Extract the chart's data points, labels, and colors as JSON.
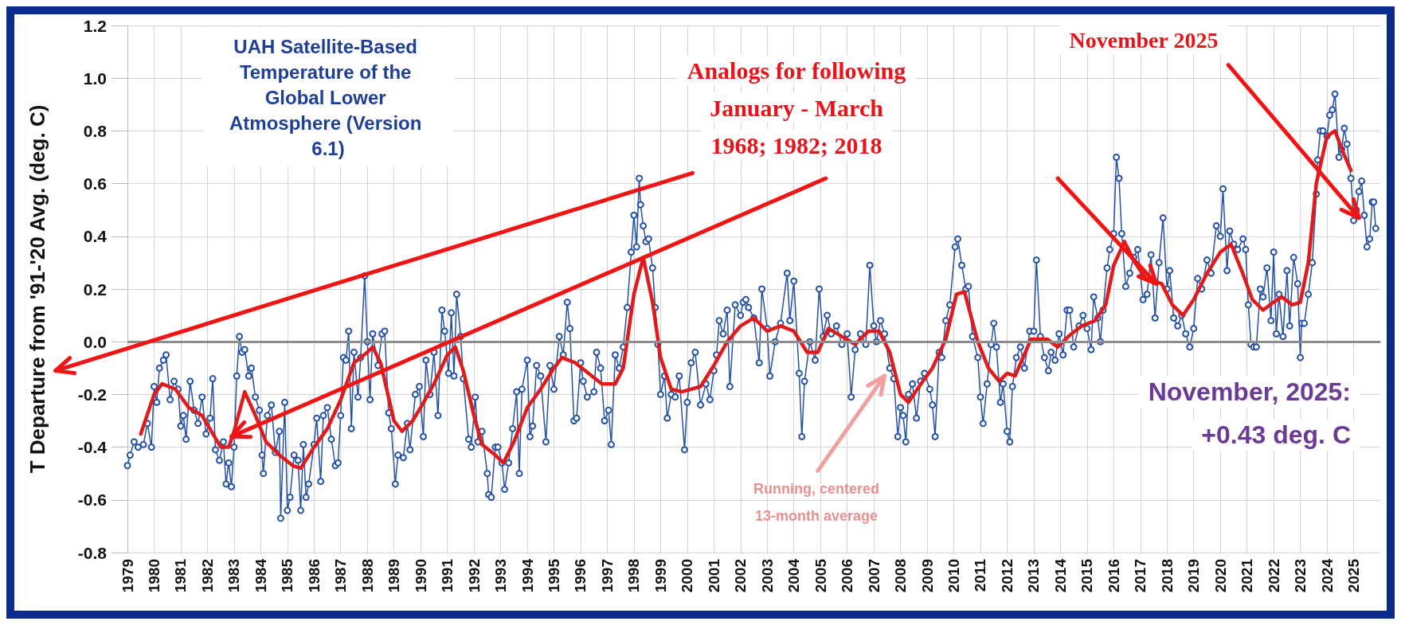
{
  "chart_data": {
    "type": "line",
    "title": "UAH Satellite-Based Temperature of the Global Lower Atmosphere (Version 6.1)",
    "ylabel": "T Departure from '91-'20 Avg. (deg. C)",
    "annotations": [
      "Analogs for following",
      "January - March",
      "1968; 1982; 2018",
      {
        "text": "November 2025",
        "x": 2025.2,
        "y": 0.47
      },
      "November, 2025:",
      "+0.43 deg. C",
      "Running, centered",
      "13-month average"
    ],
    "xlim": [
      1979,
      2026
    ],
    "xticks": [
      1979,
      1980,
      1981,
      1982,
      1983,
      1984,
      1985,
      1986,
      1987,
      1988,
      1989,
      1990,
      1991,
      1992,
      1993,
      1994,
      1995,
      1996,
      1997,
      1998,
      1999,
      2000,
      2001,
      2002,
      2003,
      2004,
      2005,
      2006,
      2007,
      2008,
      2009,
      2010,
      2011,
      2012,
      2013,
      2014,
      2015,
      2016,
      2017,
      2018,
      2019,
      2020,
      2021,
      2022,
      2023,
      2024,
      2025
    ],
    "ylim": [
      -0.8,
      1.2
    ],
    "yticks": [
      -0.8,
      -0.6,
      -0.4,
      {
        "value": -0.2,
        "label": "-0.2"
      },
      {
        "value": 0,
        "label": "0.0"
      },
      0.2,
      0.4,
      0.6,
      0.8,
      {
        "value": 1,
        "label": "1.0"
      },
      1.2
    ],
    "grid": true,
    "line_style": "solid",
    "ref_lines": [
      {
        "axis": "y",
        "value": 0,
        "color": "#8c8c8c"
      }
    ],
    "series": [
      {
        "color": "#2451a6",
        "marker": "circle",
        "x": [
          1979.0,
          1979.1,
          1979.25,
          1979.4,
          1979.6,
          1979.75,
          1979.9,
          1980.0,
          1980.1,
          1980.2,
          1980.35,
          1980.45,
          1980.6,
          1980.75,
          1980.9,
          1981.0,
          1981.1,
          1981.2,
          1981.35,
          1981.5,
          1981.65,
          1981.8,
          1981.95,
          1982.1,
          1982.2,
          1982.3,
          1982.45,
          1982.6,
          1982.7,
          1982.8,
          1982.9,
          1983.0,
          1983.1,
          1983.2,
          1983.3,
          1983.4,
          1983.55,
          1983.65,
          1983.8,
          1983.95,
          1984.05,
          1984.1,
          1984.25,
          1984.4,
          1984.55,
          1984.7,
          1984.75,
          1984.9,
          1985.0,
          1985.1,
          1985.25,
          1985.4,
          1985.5,
          1985.6,
          1985.7,
          1985.8,
          1986.0,
          1986.1,
          1986.25,
          1986.35,
          1986.5,
          1986.65,
          1986.8,
          1986.9,
          1987.0,
          1987.1,
          1987.2,
          1987.3,
          1987.4,
          1987.5,
          1987.65,
          1987.75,
          1987.9,
          1988.0,
          1988.1,
          1988.2,
          1988.4,
          1988.55,
          1988.65,
          1988.8,
          1988.9,
          1989.05,
          1989.15,
          1989.35,
          1989.5,
          1989.6,
          1989.8,
          1989.95,
          1990.1,
          1990.2,
          1990.35,
          1990.5,
          1990.65,
          1990.8,
          1990.9,
          1991.05,
          1991.15,
          1991.25,
          1991.35,
          1991.5,
          1991.6,
          1991.8,
          1991.9,
          1992.05,
          1992.15,
          1992.3,
          1992.5,
          1992.55,
          1992.65,
          1992.8,
          1992.9,
          1993.05,
          1993.15,
          1993.3,
          1993.45,
          1993.6,
          1993.7,
          1993.8,
          1994.0,
          1994.1,
          1994.2,
          1994.35,
          1994.5,
          1994.7,
          1994.85,
          1995.0,
          1995.2,
          1995.35,
          1995.5,
          1995.6,
          1995.75,
          1995.85,
          1996.0,
          1996.1,
          1996.25,
          1996.5,
          1996.6,
          1996.75,
          1996.9,
          1997.05,
          1997.15,
          1997.3,
          1997.45,
          1997.6,
          1997.75,
          1997.9,
          1998.0,
          1998.1,
          1998.2,
          1998.25,
          1998.35,
          1998.45,
          1998.55,
          1998.7,
          1998.8,
          1998.9,
          1999.0,
          1999.15,
          1999.25,
          1999.4,
          1999.55,
          1999.7,
          1999.9,
          2000.0,
          2000.15,
          2000.3,
          2000.5,
          2000.7,
          2000.85,
          2001.0,
          2001.1,
          2001.2,
          2001.35,
          2001.5,
          2001.6,
          2001.8,
          2002.0,
          2002.1,
          2002.2,
          2002.3,
          2002.5,
          2002.7,
          2002.8,
          2003.0,
          2003.1,
          2003.3,
          2003.5,
          2003.75,
          2003.85,
          2004.0,
          2004.2,
          2004.3,
          2004.4,
          2004.6,
          2004.8,
          2004.95,
          2005.1,
          2005.25,
          2005.4,
          2005.6,
          2005.8,
          2006.0,
          2006.15,
          2006.3,
          2006.5,
          2006.7,
          2006.85,
          2007.0,
          2007.1,
          2007.25,
          2007.4,
          2007.6,
          2007.75,
          2007.9,
          2008.0,
          2008.1,
          2008.2,
          2008.3,
          2008.45,
          2008.6,
          2008.75,
          2008.9,
          2009.1,
          2009.2,
          2009.3,
          2009.45,
          2009.55,
          2009.7,
          2009.85,
          2010.05,
          2010.15,
          2010.3,
          2010.45,
          2010.55,
          2010.7,
          2010.9,
          2011.0,
          2011.1,
          2011.25,
          2011.4,
          2011.5,
          2011.6,
          2011.75,
          2011.85,
          2012.0,
          2012.1,
          2012.2,
          2012.35,
          2012.5,
          2012.65,
          2012.85,
          2013.0,
          2013.1,
          2013.25,
          2013.4,
          2013.55,
          2013.65,
          2013.8,
          2013.95,
          2014.1,
          2014.25,
          2014.35,
          2014.5,
          2014.7,
          2014.85,
          2015.0,
          2015.15,
          2015.25,
          2015.4,
          2015.5,
          2015.6,
          2015.75,
          2015.85,
          2016.0,
          2016.1,
          2016.2,
          2016.3,
          2016.45,
          2016.6,
          2016.75,
          2016.9,
          2017.1,
          2017.25,
          2017.4,
          2017.55,
          2017.7,
          2017.85,
          2018.0,
          2018.1,
          2018.25,
          2018.4,
          2018.55,
          2018.7,
          2018.85,
          2019.0,
          2019.15,
          2019.3,
          2019.5,
          2019.65,
          2019.85,
          2020.0,
          2020.1,
          2020.25,
          2020.35,
          2020.5,
          2020.65,
          2020.85,
          2020.95,
          2021.05,
          2021.15,
          2021.25,
          2021.35,
          2021.5,
          2021.6,
          2021.75,
          2021.9,
          2022.0,
          2022.1,
          2022.2,
          2022.35,
          2022.5,
          2022.6,
          2022.75,
          2022.9,
          2023.0,
          2023.05,
          2023.15,
          2023.3,
          2023.45,
          2023.6,
          2023.65,
          2023.75,
          2023.85,
          2024.0,
          2024.1,
          2024.2,
          2024.3,
          2024.45,
          2024.55,
          2024.65,
          2024.75,
          2024.9,
          2025.0,
          2025.1,
          2025.2,
          2025.3,
          2025.4,
          2025.5,
          2025.6,
          2025.7,
          2025.75,
          2025.83
        ],
        "values": [
          -0.47,
          -0.43,
          -0.38,
          -0.4,
          -0.39,
          -0.31,
          -0.4,
          -0.17,
          -0.23,
          -0.1,
          -0.07,
          -0.05,
          -0.22,
          -0.15,
          -0.18,
          -0.32,
          -0.28,
          -0.37,
          -0.15,
          -0.26,
          -0.31,
          -0.21,
          -0.35,
          -0.29,
          -0.14,
          -0.41,
          -0.45,
          -0.38,
          -0.54,
          -0.46,
          -0.55,
          -0.4,
          -0.13,
          0.02,
          -0.04,
          -0.03,
          -0.13,
          -0.1,
          -0.21,
          -0.26,
          -0.43,
          -0.5,
          -0.28,
          -0.24,
          -0.42,
          -0.34,
          -0.67,
          -0.23,
          -0.64,
          -0.59,
          -0.43,
          -0.45,
          -0.64,
          -0.39,
          -0.59,
          -0.54,
          -0.39,
          -0.29,
          -0.53,
          -0.28,
          -0.25,
          -0.37,
          -0.47,
          -0.46,
          -0.28,
          -0.06,
          -0.07,
          0.04,
          -0.33,
          -0.04,
          -0.21,
          -0.06,
          0.25,
          0.0,
          -0.22,
          0.03,
          -0.09,
          0.03,
          0.04,
          -0.27,
          -0.33,
          -0.54,
          -0.43,
          -0.44,
          -0.31,
          -0.41,
          -0.2,
          -0.17,
          -0.36,
          -0.07,
          -0.2,
          -0.04,
          -0.28,
          0.12,
          0.04,
          -0.12,
          0.11,
          -0.13,
          0.18,
          0.02,
          -0.14,
          -0.37,
          -0.4,
          -0.21,
          -0.38,
          -0.34,
          -0.5,
          -0.58,
          -0.59,
          -0.4,
          -0.4,
          -0.46,
          -0.56,
          -0.46,
          -0.33,
          -0.19,
          -0.5,
          -0.18,
          -0.07,
          -0.36,
          -0.32,
          -0.09,
          -0.13,
          -0.38,
          -0.09,
          -0.18,
          0.02,
          -0.05,
          0.15,
          0.05,
          -0.3,
          -0.29,
          -0.08,
          -0.15,
          -0.21,
          -0.19,
          -0.04,
          -0.1,
          -0.3,
          -0.26,
          -0.39,
          -0.05,
          -0.1,
          -0.02,
          0.13,
          0.34,
          0.48,
          0.36,
          0.62,
          0.52,
          0.44,
          0.38,
          0.39,
          0.28,
          0.13,
          -0.01,
          -0.2,
          -0.13,
          -0.29,
          -0.2,
          -0.21,
          -0.13,
          -0.41,
          -0.23,
          -0.08,
          -0.04,
          -0.24,
          -0.16,
          -0.22,
          -0.11,
          -0.05,
          0.08,
          0.03,
          0.12,
          -0.17,
          0.14,
          0.1,
          0.15,
          0.16,
          0.13,
          0.09,
          -0.08,
          0.2,
          0.05,
          -0.13,
          0.0,
          0.07,
          0.26,
          0.08,
          0.23,
          -0.12,
          -0.36,
          -0.15,
          0.0,
          -0.07,
          0.2,
          0.02,
          0.1,
          0.03,
          0.06,
          -0.01,
          0.03,
          -0.21,
          -0.03,
          0.03,
          -0.01,
          0.29,
          0.06,
          0.0,
          0.08,
          0.03,
          -0.1,
          -0.14,
          -0.36,
          -0.25,
          -0.28,
          -0.38,
          -0.2,
          -0.16,
          -0.29,
          -0.15,
          -0.12,
          -0.18,
          -0.24,
          -0.36,
          -0.04,
          -0.06,
          0.08,
          0.14,
          0.36,
          0.39,
          0.29,
          0.2,
          0.21,
          0.02,
          -0.06,
          -0.21,
          -0.31,
          -0.16,
          -0.01,
          0.07,
          -0.02,
          -0.23,
          -0.16,
          -0.34,
          -0.38,
          -0.17,
          -0.06,
          -0.02,
          -0.1,
          0.04,
          0.04,
          0.31,
          0.02,
          -0.06,
          -0.11,
          -0.04,
          -0.07,
          0.03,
          -0.05,
          0.12,
          0.12,
          -0.02,
          0.06,
          0.1,
          0.05,
          -0.03,
          0.17,
          0.09,
          0.0,
          0.12,
          0.28,
          0.35,
          0.41,
          0.7,
          0.62,
          0.41,
          0.21,
          0.26,
          0.32,
          0.35,
          0.16,
          0.18,
          0.33,
          0.09,
          0.3,
          0.47,
          0.2,
          0.27,
          0.09,
          0.06,
          0.1,
          0.03,
          -0.02,
          0.05,
          0.24,
          0.2,
          0.31,
          0.26,
          0.44,
          0.4,
          0.58,
          0.27,
          0.42,
          0.37,
          0.35,
          0.39,
          0.35,
          0.14,
          -0.01,
          -0.02,
          -0.02,
          0.2,
          0.17,
          0.28,
          0.08,
          0.34,
          0.03,
          0.18,
          0.02,
          0.27,
          0.06,
          0.32,
          0.22,
          -0.06,
          0.07,
          0.07,
          0.18,
          0.3,
          0.56,
          0.69,
          0.8,
          0.8,
          0.78,
          0.86,
          0.88,
          0.94,
          0.7,
          0.73,
          0.81,
          0.75,
          0.62,
          0.46,
          0.5,
          0.57,
          0.61,
          0.48,
          0.36,
          0.39,
          0.53,
          0.53,
          0.43
        ]
      },
      {
        "color": "#e01b1b",
        "marker": "none",
        "x": [
          1979.5,
          1980.0,
          1980.3,
          1980.8,
          1981.3,
          1981.8,
          1982.5,
          1982.8,
          1983.0,
          1983.4,
          1983.8,
          1984.2,
          1984.7,
          1985.2,
          1985.5,
          1986.0,
          1986.5,
          1987.0,
          1987.5,
          1988.0,
          1988.2,
          1988.5,
          1989.0,
          1989.3,
          1989.7,
          1990.0,
          1990.5,
          1991.0,
          1991.3,
          1991.6,
          1992.0,
          1992.3,
          1992.8,
          1993.1,
          1993.5,
          1994.0,
          1994.5,
          1995.0,
          1995.3,
          1995.8,
          1996.3,
          1996.8,
          1997.3,
          1997.6,
          1998.0,
          1998.35,
          1998.7,
          1999.0,
          1999.4,
          1999.8,
          2000.5,
          2001.0,
          2001.5,
          2002.0,
          2002.5,
          2003.0,
          2003.5,
          2004.0,
          2004.5,
          2004.9,
          2005.3,
          2005.8,
          2006.3,
          2006.8,
          2007.2,
          2007.6,
          2008.0,
          2008.3,
          2008.7,
          2009.2,
          2009.7,
          2010.1,
          2010.4,
          2010.9,
          2011.3,
          2011.7,
          2012.0,
          2012.3,
          2012.9,
          2013.5,
          2013.9,
          2014.3,
          2014.8,
          2015.3,
          2015.7,
          2016.0,
          2016.4,
          2016.8,
          2017.2,
          2017.8,
          2018.2,
          2018.6,
          2019.0,
          2019.5,
          2020.0,
          2020.4,
          2020.8,
          2021.2,
          2021.6,
          2022.0,
          2022.3,
          2022.7,
          2023.0,
          2023.3,
          2023.6,
          2024.0,
          2024.3,
          2024.6,
          2024.9
        ],
        "values": [
          -0.35,
          -0.2,
          -0.16,
          -0.18,
          -0.25,
          -0.28,
          -0.4,
          -0.4,
          -0.34,
          -0.19,
          -0.28,
          -0.38,
          -0.43,
          -0.47,
          -0.48,
          -0.4,
          -0.33,
          -0.22,
          -0.08,
          -0.04,
          -0.02,
          -0.08,
          -0.3,
          -0.34,
          -0.3,
          -0.25,
          -0.16,
          -0.05,
          -0.02,
          -0.11,
          -0.28,
          -0.39,
          -0.43,
          -0.46,
          -0.38,
          -0.25,
          -0.18,
          -0.1,
          -0.06,
          -0.08,
          -0.12,
          -0.16,
          -0.16,
          -0.1,
          0.18,
          0.32,
          0.15,
          -0.06,
          -0.18,
          -0.19,
          -0.17,
          -0.09,
          0.0,
          0.06,
          0.09,
          0.04,
          0.06,
          0.04,
          -0.04,
          -0.04,
          0.05,
          0.02,
          -0.01,
          0.04,
          0.04,
          -0.04,
          -0.2,
          -0.23,
          -0.17,
          -0.1,
          0.01,
          0.18,
          0.19,
          0.0,
          -0.1,
          -0.15,
          -0.12,
          -0.13,
          0.01,
          0.01,
          -0.02,
          0.02,
          0.06,
          0.08,
          0.14,
          0.29,
          0.38,
          0.3,
          0.24,
          0.22,
          0.14,
          0.1,
          0.16,
          0.26,
          0.34,
          0.37,
          0.27,
          0.16,
          0.12,
          0.15,
          0.17,
          0.14,
          0.15,
          0.3,
          0.6,
          0.78,
          0.8,
          0.72,
          0.65
        ]
      }
    ]
  }
}
